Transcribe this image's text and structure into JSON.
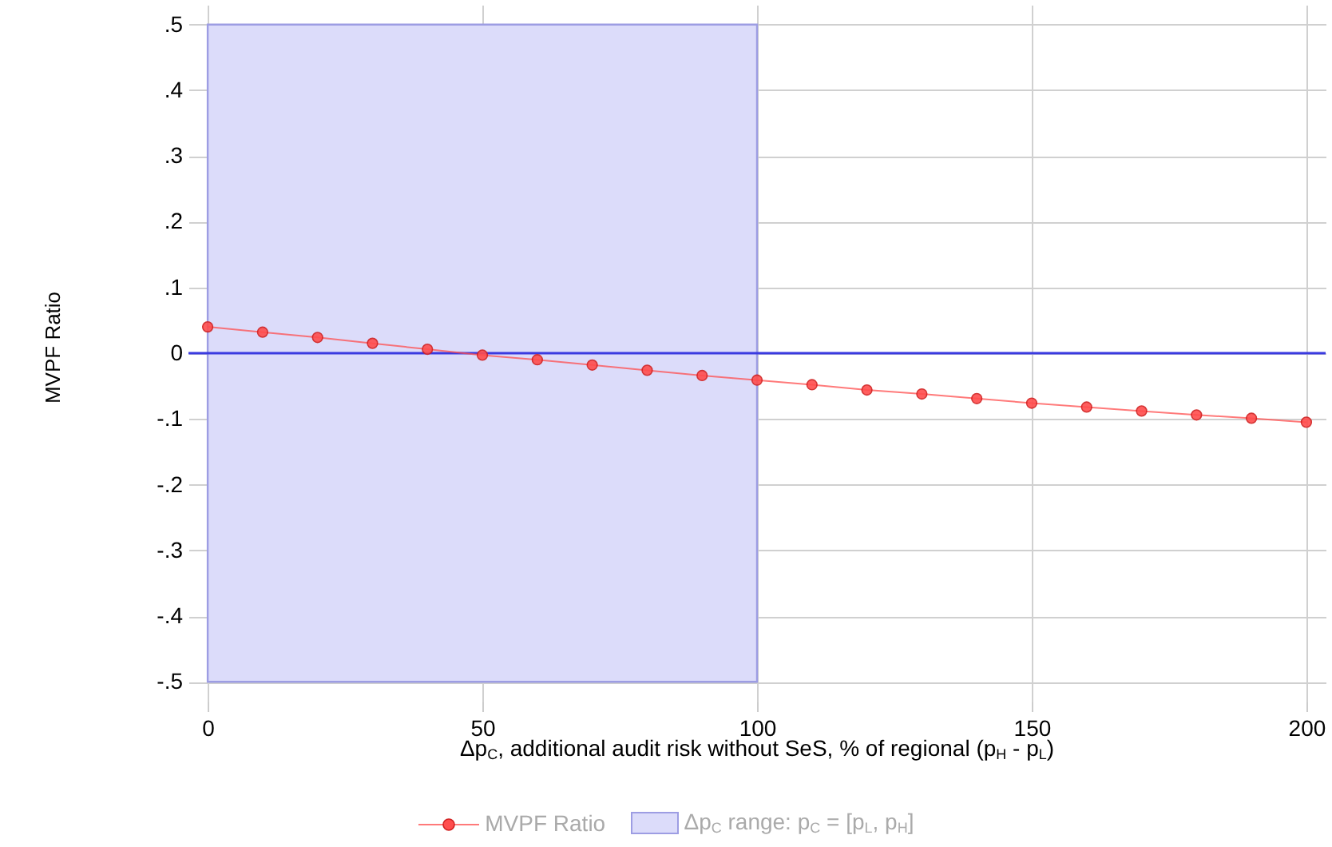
{
  "chart_data": {
    "type": "line",
    "xlabel": "Δp$_{C}$, additional audit risk without SeS, % of regional (p$_{H}$ - p$_{L}$)",
    "ylabel": "MVPF Ratio",
    "x": [
      0,
      10,
      20,
      30,
      40,
      50,
      60,
      70,
      80,
      90,
      100,
      110,
      120,
      130,
      140,
      150,
      160,
      170,
      180,
      190,
      200
    ],
    "series": [
      {
        "name": "MVPF Ratio",
        "color": "#ff4d4d",
        "values": [
          0.04,
          0.032,
          0.024,
          0.015,
          0.006,
          -0.003,
          -0.01,
          -0.018,
          -0.026,
          -0.034,
          -0.041,
          -0.048,
          -0.056,
          -0.062,
          -0.069,
          -0.076,
          -0.082,
          -0.088,
          -0.094,
          -0.099,
          -0.105
        ]
      }
    ],
    "xlim": [
      -3.5,
      203.5
    ],
    "ylim": [
      -0.53,
      0.53
    ],
    "xticks": [
      0,
      50,
      100,
      150,
      200
    ],
    "yticks": [
      {
        "value": -0.5,
        "label": "-.5"
      },
      {
        "value": -0.4,
        "label": "-.4"
      },
      {
        "value": -0.3,
        "label": "-.3"
      },
      {
        "value": -0.2,
        "label": "-.2"
      },
      {
        "value": -0.1,
        "label": "-.1"
      },
      0,
      {
        "value": 0.1,
        "label": ".1"
      },
      {
        "value": 0.2,
        "label": ".2"
      },
      {
        "value": 0.3,
        "label": ".3"
      },
      {
        "value": 0.4,
        "label": ".4"
      },
      {
        "value": 0.5,
        "label": ".5"
      }
    ],
    "ref_lines": [
      {
        "axis": "y",
        "value": 0,
        "color": "#3a3ae0"
      }
    ],
    "bands": [
      {
        "axis": "x",
        "from": 0,
        "to": 100,
        "label": "Δp$_{C}$ range: p$_{C}$ = [p$_{L}$, p$_{H}$]",
        "color": "#dcdcfa"
      }
    ],
    "grid": true,
    "marker": "circle",
    "legend": "bottom"
  }
}
